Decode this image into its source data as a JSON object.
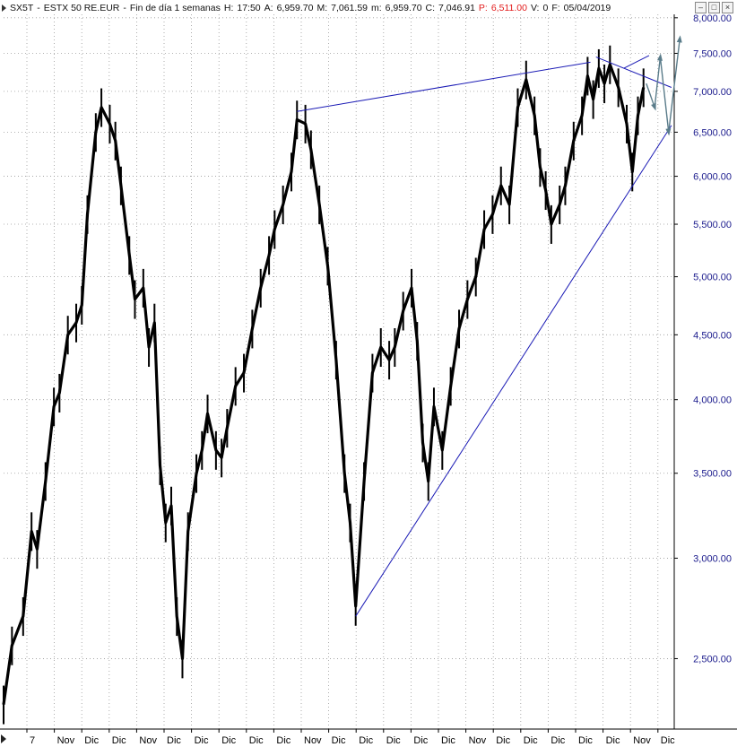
{
  "header": {
    "symbol": "SX5T",
    "name": "ESTX 50 RE.EUR",
    "period": "Fin de día 1 semanas",
    "h_label": "H:",
    "h_value": "17:50",
    "a_label": "A:",
    "a_value": "6,959.70",
    "m_label": "M:",
    "m_value": "7,061.59",
    "min_label": "m:",
    "min_value": "6,959.70",
    "c_label": "C:",
    "c_value": "7,046.91",
    "p_label": "P:",
    "p_value": "6,511.00",
    "v_label": "V:",
    "v_value": "0",
    "f_label": "F:",
    "f_value": "05/04/2019",
    "highlight_color": "#e21b1b"
  },
  "window_controls": {
    "minimize": "–",
    "restore": "□",
    "close": "×"
  },
  "chart_data": {
    "type": "line",
    "scale": "log",
    "ylim": [
      2200,
      8050
    ],
    "grid": true,
    "title": "",
    "xlabel": "",
    "ylabel": "",
    "yticks": [
      {
        "value": 8000,
        "label": "8,000.00"
      },
      {
        "value": 7500,
        "label": "7,500.00"
      },
      {
        "value": 7000,
        "label": "7,000.00"
      },
      {
        "value": 6500,
        "label": "6,500.00"
      },
      {
        "value": 6000,
        "label": "6,000.00"
      },
      {
        "value": 5500,
        "label": "5,500.00"
      },
      {
        "value": 5000,
        "label": "5,000.00"
      },
      {
        "value": 4500,
        "label": "4,500.00"
      },
      {
        "value": 4000,
        "label": "4,000.00"
      },
      {
        "value": 3500,
        "label": "3,500.00"
      },
      {
        "value": 3000,
        "label": "3,000.00"
      },
      {
        "value": 2500,
        "label": "2,500.00"
      }
    ],
    "xticks": [
      "7",
      "Nov",
      "Dic",
      "Dic",
      "Nov",
      "Dic",
      "Dic",
      "Dic",
      "Dic",
      "Dic",
      "Nov",
      "Dic",
      "Dic",
      "Dic",
      "Dic",
      "Dic",
      "Nov",
      "Dic",
      "Dic",
      "Dic",
      "Dic",
      "Dic",
      "Nov",
      "Dic"
    ],
    "x_range": [
      0,
      24
    ],
    "series": [
      {
        "color": "#000000",
        "points": [
          [
            0.0,
            2300
          ],
          [
            0.3,
            2560
          ],
          [
            0.7,
            2700
          ],
          [
            1.0,
            3150
          ],
          [
            1.2,
            3050
          ],
          [
            1.5,
            3450
          ],
          [
            1.8,
            3950
          ],
          [
            2.0,
            4050
          ],
          [
            2.3,
            4500
          ],
          [
            2.6,
            4600
          ],
          [
            2.8,
            4750
          ],
          [
            3.0,
            5600
          ],
          [
            3.3,
            6500
          ],
          [
            3.5,
            6800
          ],
          [
            3.8,
            6600
          ],
          [
            4.0,
            6400
          ],
          [
            4.2,
            5900
          ],
          [
            4.5,
            5200
          ],
          [
            4.7,
            4800
          ],
          [
            5.0,
            4900
          ],
          [
            5.2,
            4400
          ],
          [
            5.4,
            4600
          ],
          [
            5.6,
            3550
          ],
          [
            5.8,
            3200
          ],
          [
            6.0,
            3300
          ],
          [
            6.2,
            2700
          ],
          [
            6.4,
            2500
          ],
          [
            6.6,
            3150
          ],
          [
            6.9,
            3500
          ],
          [
            7.1,
            3650
          ],
          [
            7.3,
            3900
          ],
          [
            7.6,
            3650
          ],
          [
            7.8,
            3600
          ],
          [
            8.0,
            3800
          ],
          [
            8.3,
            4100
          ],
          [
            8.6,
            4200
          ],
          [
            8.9,
            4550
          ],
          [
            9.2,
            4900
          ],
          [
            9.5,
            5200
          ],
          [
            9.7,
            5450
          ],
          [
            10.0,
            5700
          ],
          [
            10.3,
            6050
          ],
          [
            10.5,
            6650
          ],
          [
            10.8,
            6600
          ],
          [
            11.0,
            6300
          ],
          [
            11.3,
            5700
          ],
          [
            11.6,
            5100
          ],
          [
            11.9,
            4300
          ],
          [
            12.2,
            3500
          ],
          [
            12.4,
            3200
          ],
          [
            12.6,
            2750
          ],
          [
            12.9,
            3450
          ],
          [
            13.2,
            4200
          ],
          [
            13.5,
            4400
          ],
          [
            13.8,
            4300
          ],
          [
            14.0,
            4400
          ],
          [
            14.3,
            4700
          ],
          [
            14.6,
            4900
          ],
          [
            14.8,
            4450
          ],
          [
            15.0,
            3700
          ],
          [
            15.2,
            3450
          ],
          [
            15.4,
            3950
          ],
          [
            15.7,
            3650
          ],
          [
            16.0,
            4100
          ],
          [
            16.3,
            4550
          ],
          [
            16.6,
            4800
          ],
          [
            16.9,
            5000
          ],
          [
            17.2,
            5450
          ],
          [
            17.5,
            5600
          ],
          [
            17.8,
            5900
          ],
          [
            18.1,
            5700
          ],
          [
            18.4,
            6800
          ],
          [
            18.7,
            7150
          ],
          [
            19.0,
            6700
          ],
          [
            19.2,
            6100
          ],
          [
            19.4,
            5850
          ],
          [
            19.6,
            5500
          ],
          [
            19.9,
            5700
          ],
          [
            20.1,
            5900
          ],
          [
            20.4,
            6400
          ],
          [
            20.7,
            6700
          ],
          [
            20.9,
            7200
          ],
          [
            21.1,
            6900
          ],
          [
            21.3,
            7300
          ],
          [
            21.5,
            7100
          ],
          [
            21.7,
            7350
          ],
          [
            22.0,
            7050
          ],
          [
            22.3,
            6600
          ],
          [
            22.5,
            6050
          ],
          [
            22.7,
            6700
          ],
          [
            22.9,
            7050
          ]
        ]
      }
    ],
    "trendlines": [
      {
        "color": "#1a1ab5",
        "from": [
          10.5,
          6750
        ],
        "to": [
          21.0,
          7380
        ]
      },
      {
        "color": "#1a1ab5",
        "from": [
          12.6,
          2700
        ],
        "to": [
          23.9,
          6580
        ]
      },
      {
        "color": "#1a1ab5",
        "from": [
          21.2,
          7450
        ],
        "to": [
          23.9,
          7050
        ]
      },
      {
        "color": "#1a1ab5",
        "from": [
          22.2,
          7300
        ],
        "to": [
          23.1,
          7470
        ]
      }
    ],
    "projection": {
      "color": "#5a7c8a",
      "points": [
        [
          23.0,
          7100
        ],
        [
          23.3,
          6800
        ],
        [
          23.5,
          7450
        ],
        [
          23.8,
          6500
        ],
        [
          24.2,
          7700
        ]
      ]
    }
  }
}
